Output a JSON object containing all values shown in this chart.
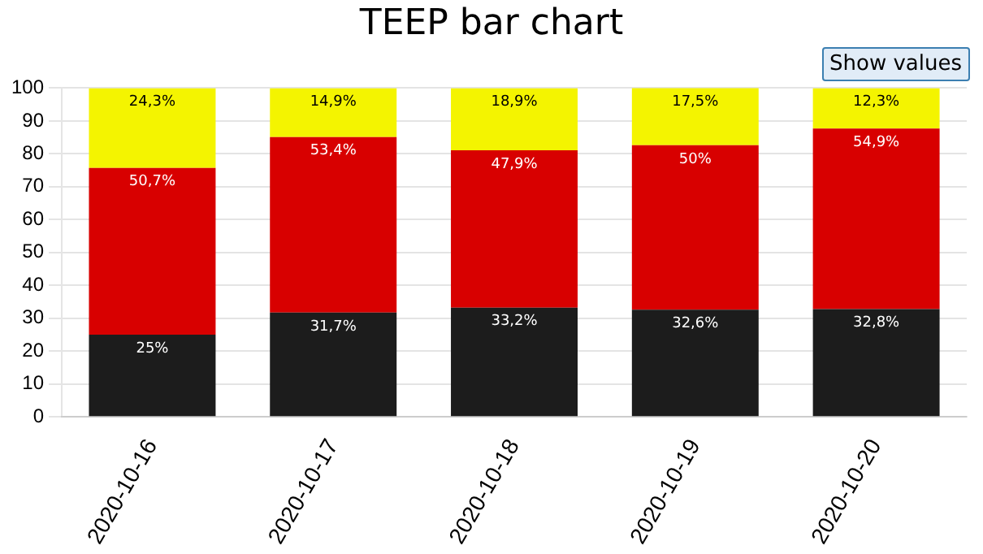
{
  "chart_data": {
    "type": "bar",
    "title": "TEEP bar chart",
    "annotations": [
      "Show values"
    ],
    "categories": [
      "2020-10-16",
      "2020-10-17",
      "2020-10-18",
      "2020-10-19",
      "2020-10-20"
    ],
    "stacked": true,
    "ylim": [
      0,
      100
    ],
    "yticks": [
      0,
      10,
      20,
      30,
      40,
      50,
      60,
      70,
      80,
      90,
      100
    ],
    "grid": "y",
    "legend": false,
    "series": [
      {
        "color": "#1c1c1c",
        "values": [
          25,
          31.7,
          33.2,
          32.6,
          32.8
        ],
        "value_labels": [
          "25%",
          "31,7%",
          "33,2%",
          "32,6%",
          "32,8%"
        ]
      },
      {
        "color": "#d80000",
        "values": [
          50.7,
          53.4,
          47.9,
          50,
          54.9
        ],
        "value_labels": [
          "50,7%",
          "53,4%",
          "47,9%",
          "50%",
          "54,9%"
        ]
      },
      {
        "color": "#f4f400",
        "values": [
          24.3,
          14.9,
          18.9,
          17.5,
          12.3
        ],
        "value_labels": [
          "24,3%",
          "14,9%",
          "18,9%",
          "17,5%",
          "12,3%"
        ]
      }
    ]
  }
}
